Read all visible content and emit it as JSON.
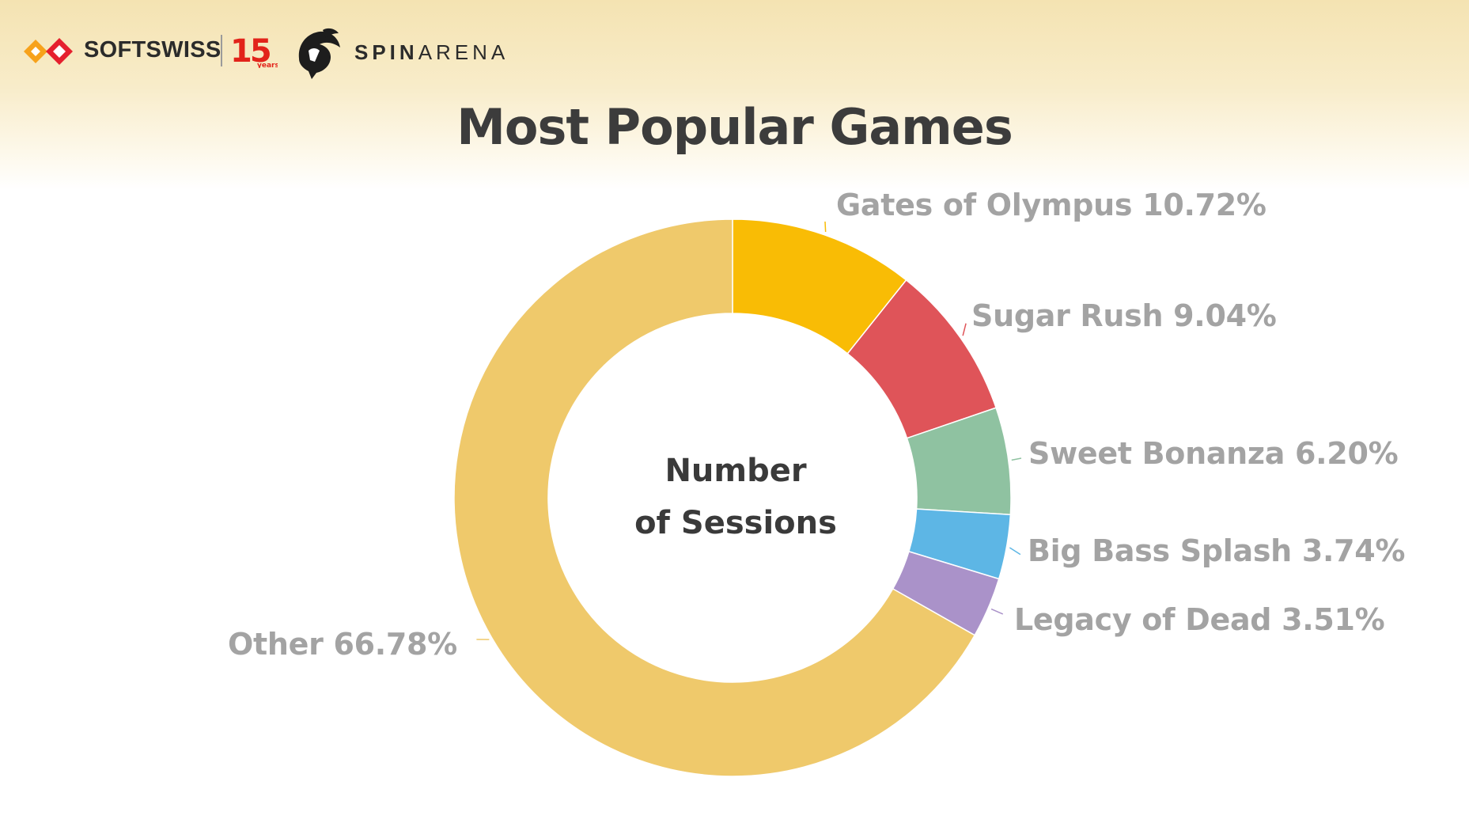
{
  "brand": {
    "softswiss": "SOFTSWISS",
    "years_number": "15",
    "years_word": "years",
    "spinarena_bold": "SPIN",
    "spinarena_light": "ARENA",
    "colors": {
      "softswiss_orange": "#f7a21b",
      "softswiss_red": "#e5202e",
      "years_red": "#e2231a"
    }
  },
  "center": {
    "line1": "Number",
    "line2": "of Sessions"
  },
  "chart_data": {
    "type": "pie",
    "donut": true,
    "title": "Most Popular Games",
    "categories": [
      "Gates of Olympus",
      "Sugar Rush",
      "Sweet Bonanza",
      "Big Bass Splash",
      "Legacy of Dead",
      "Other"
    ],
    "values": [
      10.72,
      9.04,
      6.2,
      3.74,
      3.51,
      66.78
    ],
    "value_labels": [
      "10.72%",
      "9.04%",
      "6.20%",
      "3.74%",
      "3.51%",
      "66.78%"
    ],
    "colors": [
      "#f9bc05",
      "#df5459",
      "#8fc2a1",
      "#5db6e5",
      "#aa92c9",
      "#efc96b"
    ],
    "legend": "none"
  }
}
